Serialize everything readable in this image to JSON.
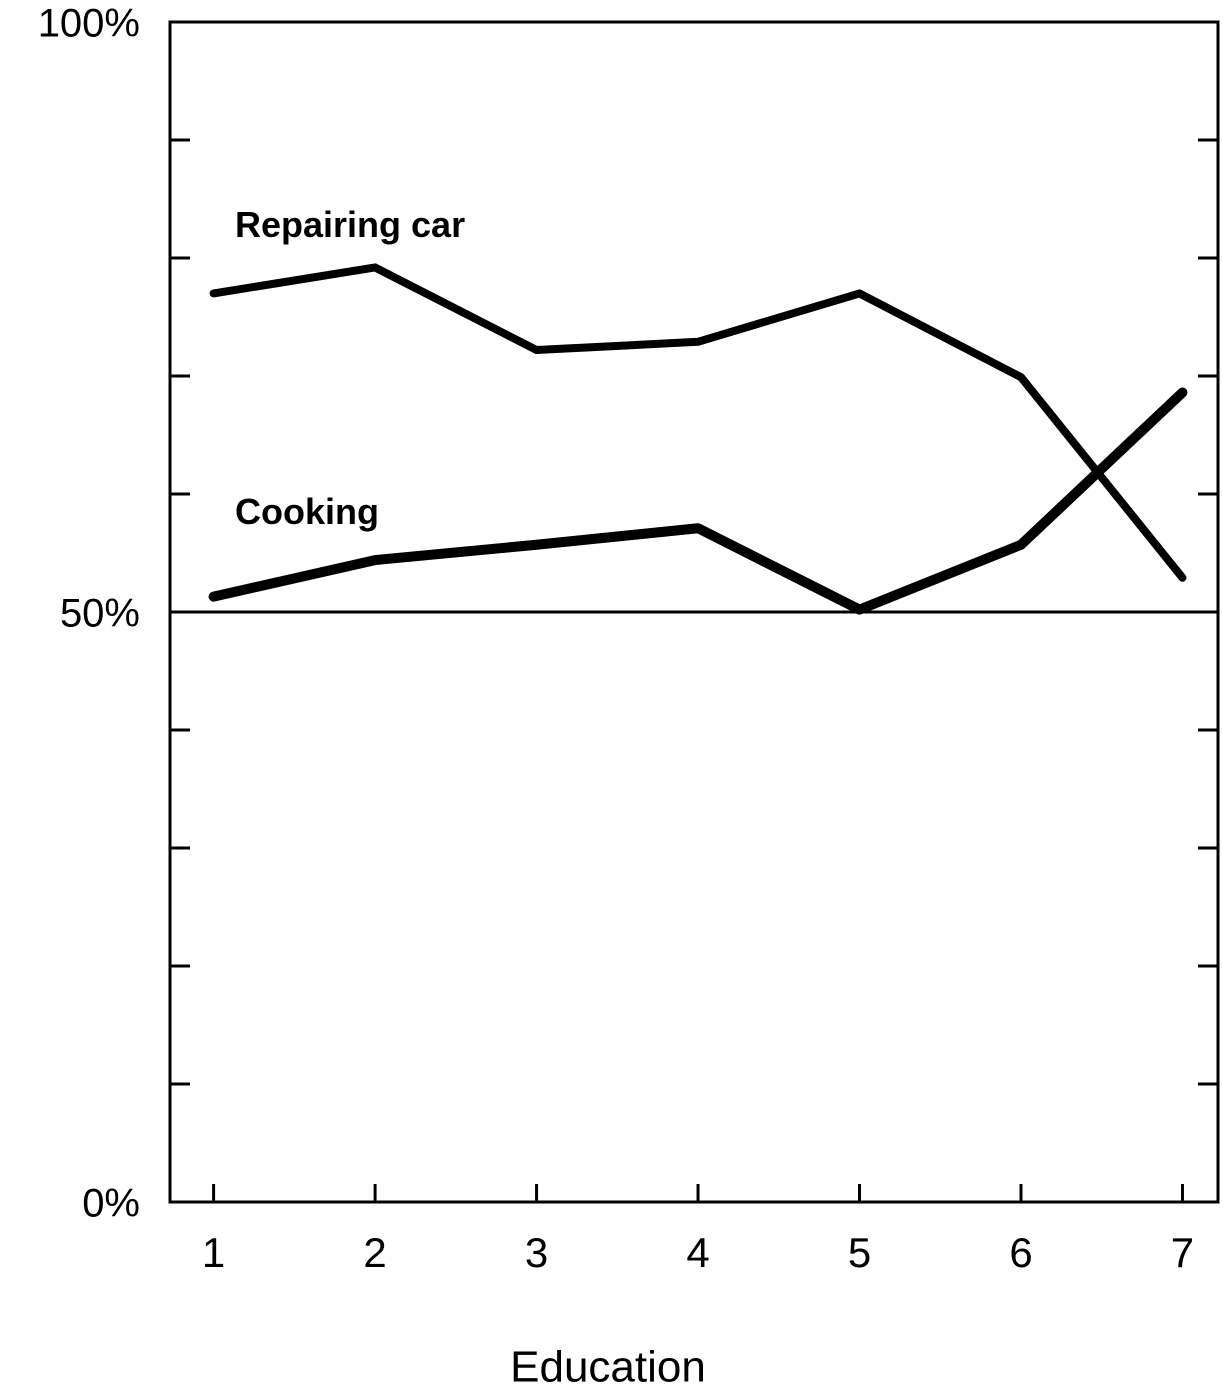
{
  "chart_data": {
    "type": "line",
    "x": [
      1,
      2,
      3,
      4,
      5,
      6,
      7
    ],
    "series": [
      {
        "name": "Repairing car",
        "color": "#000000",
        "values": [
          77.0,
          79.2,
          72.2,
          72.9,
          77.0,
          69.9,
          52.9
        ]
      },
      {
        "name": "Cooking",
        "color": "#000000",
        "values": [
          51.3,
          54.4,
          55.7,
          57.1,
          50.2,
          55.7,
          68.6
        ]
      }
    ],
    "xlabel": "Education",
    "xlim": [
      0.73,
      7.22
    ],
    "xticks": [
      1,
      2,
      3,
      4,
      5,
      6,
      7
    ],
    "ylim": [
      0,
      100
    ],
    "yticks": [
      {
        "value": 0,
        "label": "0%"
      },
      {
        "value": 50,
        "label": "50%"
      },
      {
        "value": 100,
        "label": "100%"
      }
    ],
    "minor_yticks": [
      10,
      20,
      30,
      40,
      60,
      70,
      80,
      90
    ],
    "hline": 50
  }
}
